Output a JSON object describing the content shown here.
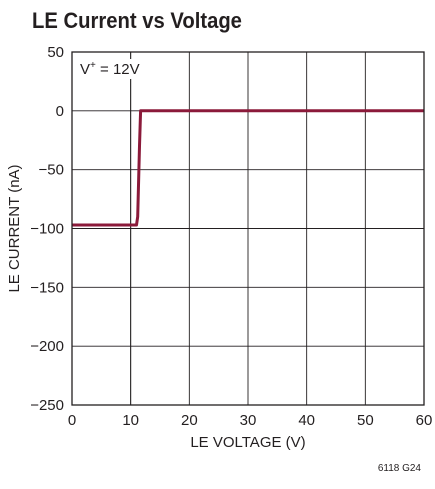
{
  "chart_data": {
    "type": "line",
    "title": "LE Current vs Voltage",
    "xlabel": "LE VOLTAGE (V)",
    "ylabel": "LE CURRENT (nA)",
    "xlim": [
      0,
      60
    ],
    "ylim": [
      -250,
      50
    ],
    "xticks": [
      "0",
      "10",
      "20",
      "30",
      "40",
      "50",
      "60"
    ],
    "yticks": [
      "50",
      "0",
      "−50",
      "−100",
      "−150",
      "−200",
      "−250"
    ],
    "grid": true,
    "annotation": "V⁺ = 12V",
    "series": [
      {
        "x": [
          0,
          5,
          10,
          11,
          11.2,
          11.5,
          11.7,
          12,
          15,
          20,
          30,
          40,
          50,
          60
        ],
        "y": [
          -97,
          -97,
          -97,
          -97,
          -90,
          -30,
          0,
          0,
          0,
          0,
          0,
          0,
          0,
          0
        ],
        "color": "#8b1a3a"
      }
    ],
    "footnote": "6118 G24"
  }
}
